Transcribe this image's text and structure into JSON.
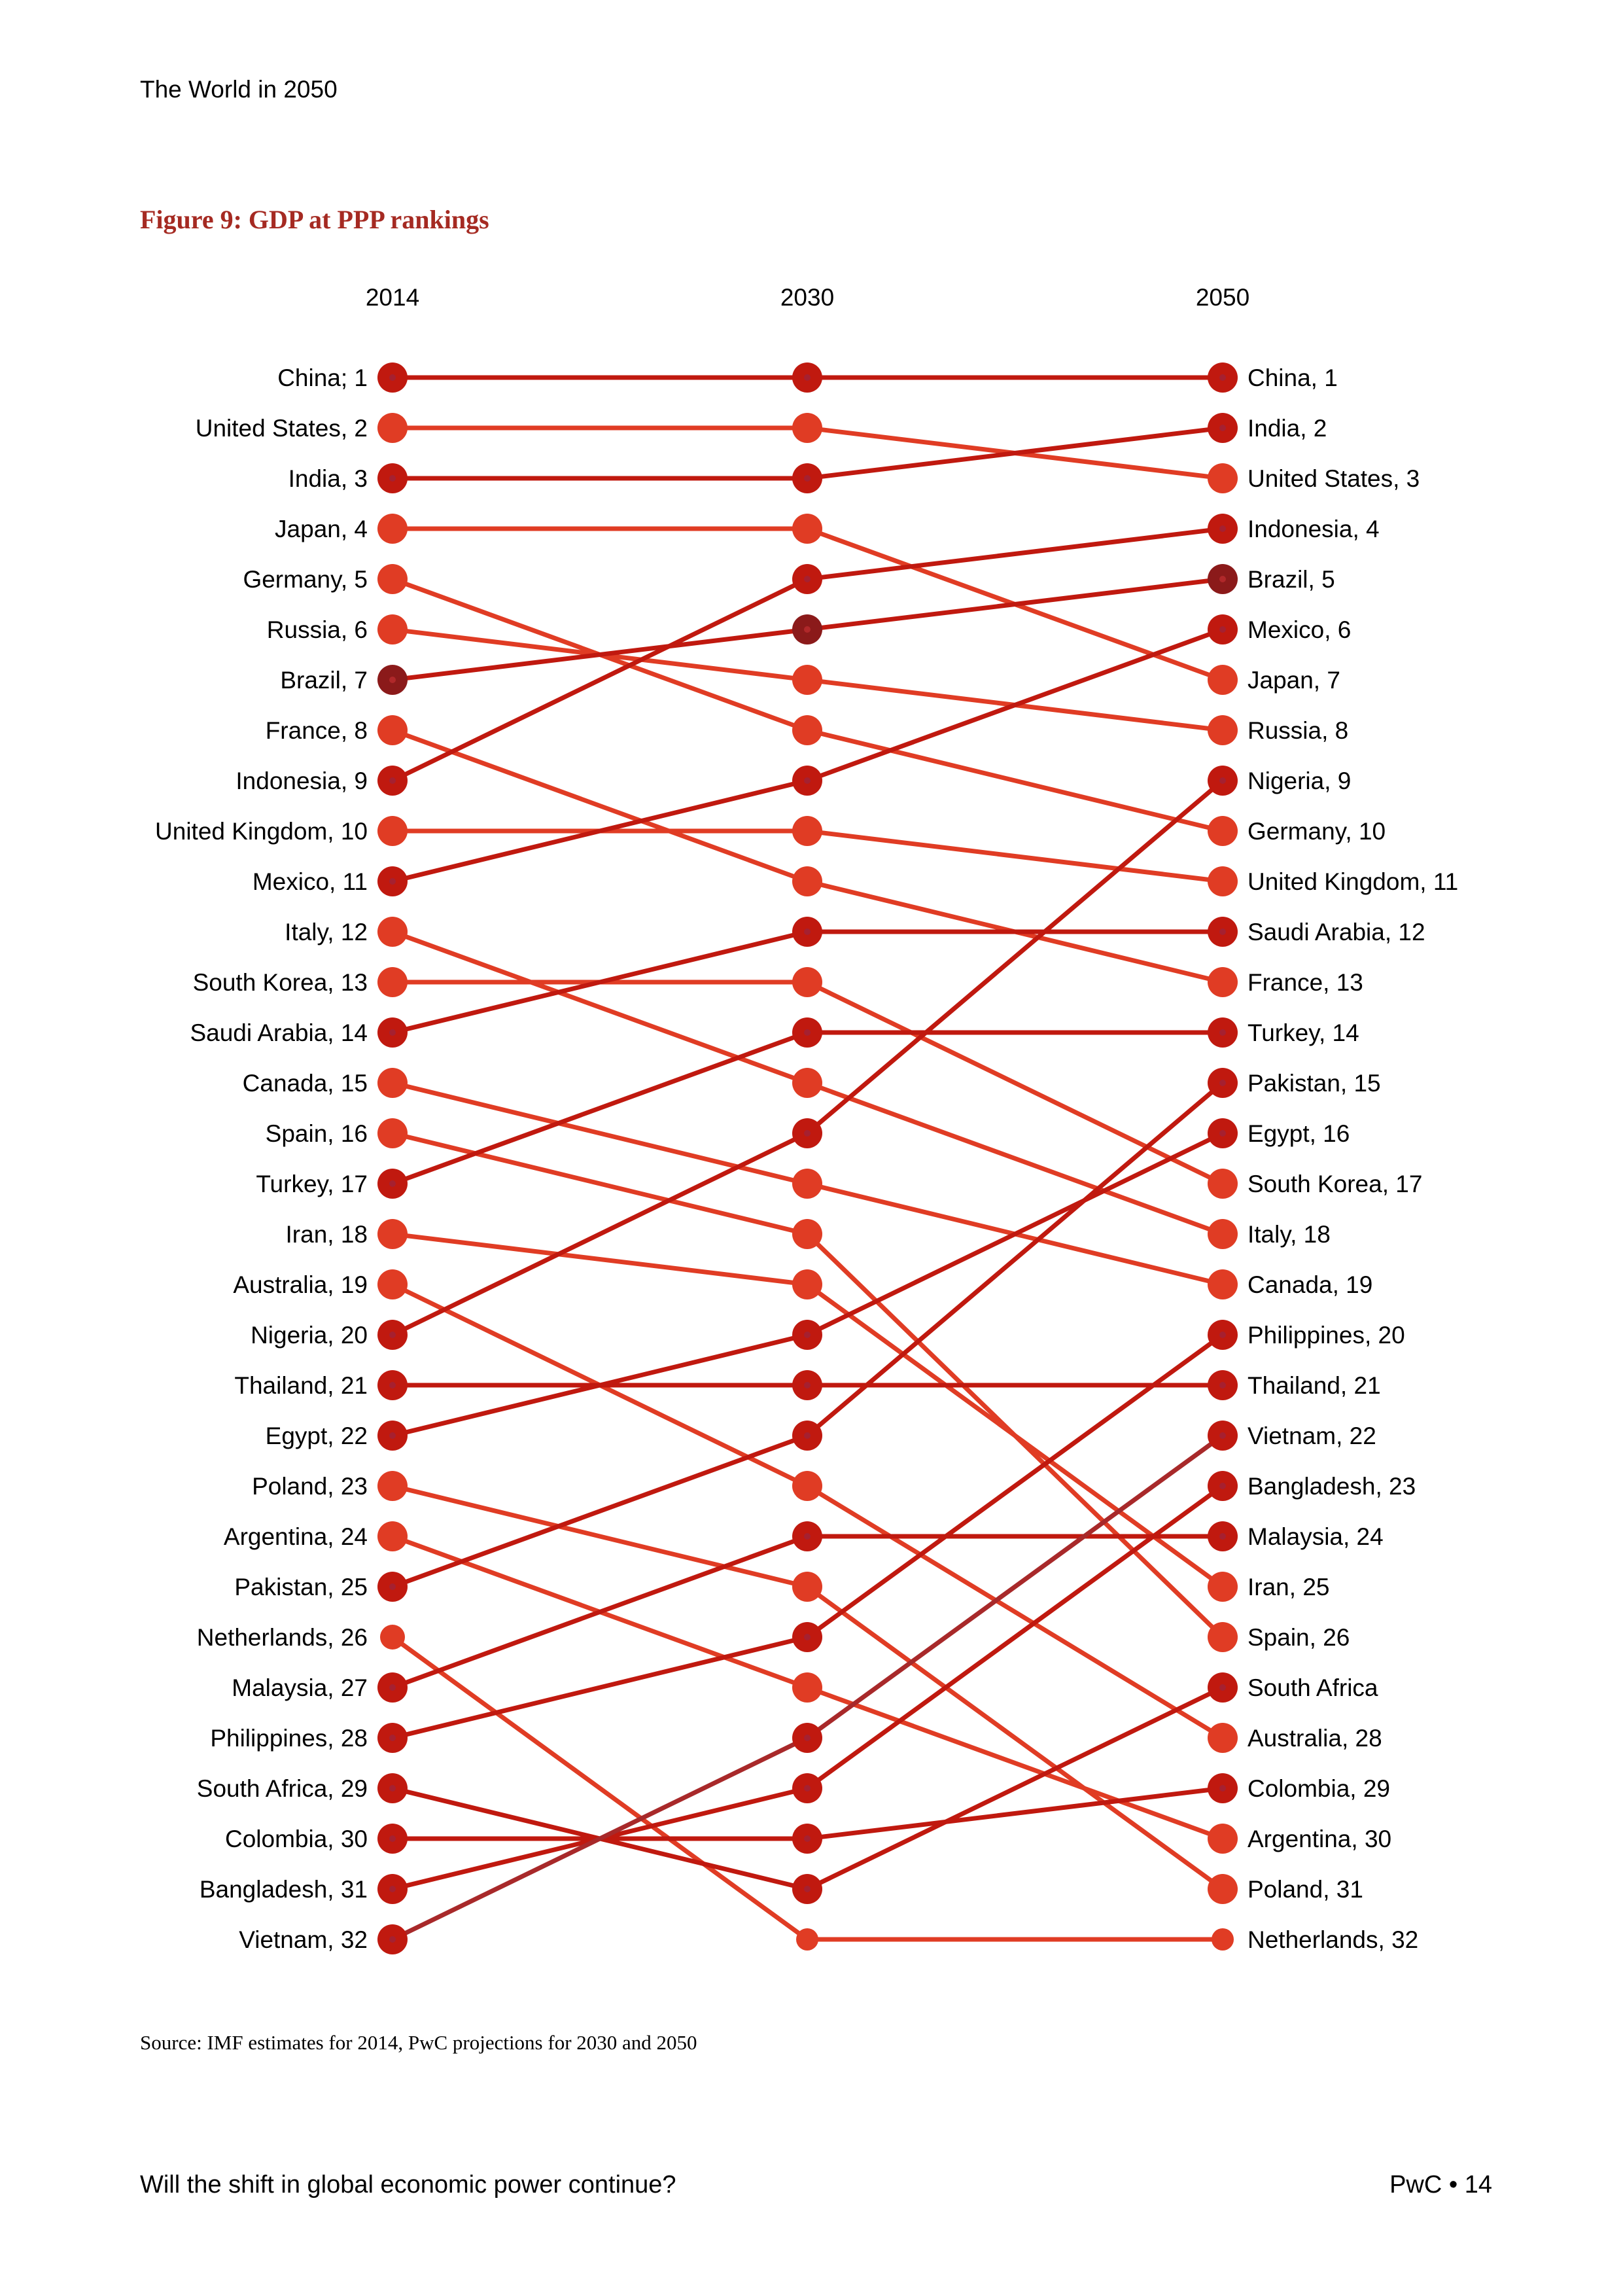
{
  "header": {
    "title": "The World in 2050"
  },
  "figure": {
    "title": "Figure 9: GDP at PPP rankings"
  },
  "source": "Source: IMF estimates for 2014, PwC projections for 2030 and 2050",
  "footer": {
    "left": "Will the shift in global economic power continue?",
    "right": "PwC • 14"
  },
  "colors": {
    "emerging": "#C0190F",
    "advanced": "#E03C24",
    "brazil": "#8B1A1A",
    "vietnam_line": "#A8292A"
  },
  "chart_data": {
    "type": "slope",
    "title": "Figure 9: GDP at PPP rankings",
    "years": [
      "2014",
      "2030",
      "2050"
    ],
    "series": [
      {
        "name": "China",
        "group": "emerging",
        "ranks": [
          1,
          1,
          1
        ],
        "label_2014": "China;  1",
        "label_2050": "China,  1"
      },
      {
        "name": "United States",
        "group": "advanced",
        "ranks": [
          2,
          2,
          3
        ],
        "label_2014": "United States,  2",
        "label_2050": "United States,  3"
      },
      {
        "name": "India",
        "group": "emerging",
        "ranks": [
          3,
          3,
          2
        ],
        "label_2014": "India,  3",
        "label_2050": "India,  2"
      },
      {
        "name": "Japan",
        "group": "advanced",
        "ranks": [
          4,
          4,
          7
        ],
        "label_2014": "Japan,  4",
        "label_2050": "Japan,  7"
      },
      {
        "name": "Germany",
        "group": "advanced",
        "ranks": [
          5,
          8,
          10
        ],
        "label_2014": "Germany,  5",
        "label_2050": "Germany,  10"
      },
      {
        "name": "Russia",
        "group": "advanced",
        "ranks": [
          6,
          7,
          8
        ],
        "label_2014": "Russia,  6",
        "label_2050": "Russia,  8"
      },
      {
        "name": "Brazil",
        "group": "brazil",
        "ranks": [
          7,
          6,
          5
        ],
        "label_2014": "Brazil,  7",
        "label_2050": "Brazil,  5"
      },
      {
        "name": "France",
        "group": "advanced",
        "ranks": [
          8,
          11,
          13
        ],
        "label_2014": "France,  8",
        "label_2050": "France,  13"
      },
      {
        "name": "Indonesia",
        "group": "emerging",
        "ranks": [
          9,
          5,
          4
        ],
        "label_2014": "Indonesia,  9",
        "label_2050": "Indonesia,  4"
      },
      {
        "name": "United Kingdom",
        "group": "advanced",
        "ranks": [
          10,
          10,
          11
        ],
        "label_2014": "United Kingdom,  10",
        "label_2050": "United Kingdom,  11"
      },
      {
        "name": "Mexico",
        "group": "emerging",
        "ranks": [
          11,
          9,
          6
        ],
        "label_2014": "Mexico,  11",
        "label_2050": "Mexico,  6"
      },
      {
        "name": "Italy",
        "group": "advanced",
        "ranks": [
          12,
          15,
          18
        ],
        "label_2014": "Italy,  12",
        "label_2050": "Italy,  18"
      },
      {
        "name": "South Korea",
        "group": "advanced",
        "ranks": [
          13,
          13,
          17
        ],
        "label_2014": "South Korea,  13",
        "label_2050": "South Korea,  17"
      },
      {
        "name": "Saudi Arabia",
        "group": "emerging",
        "ranks": [
          14,
          12,
          12
        ],
        "label_2014": "Saudi Arabia,  14",
        "label_2050": "Saudi Arabia,  12"
      },
      {
        "name": "Canada",
        "group": "advanced",
        "ranks": [
          15,
          17,
          19
        ],
        "label_2014": "Canada,  15",
        "label_2050": "Canada,  19"
      },
      {
        "name": "Spain",
        "group": "advanced",
        "ranks": [
          16,
          18,
          26
        ],
        "label_2014": "Spain,  16",
        "label_2050": "Spain,  26"
      },
      {
        "name": "Turkey",
        "group": "emerging",
        "ranks": [
          17,
          14,
          14
        ],
        "label_2014": "Turkey,  17",
        "label_2050": "Turkey,  14"
      },
      {
        "name": "Iran",
        "group": "advanced",
        "ranks": [
          18,
          19,
          25
        ],
        "label_2014": "Iran,  18",
        "label_2050": "Iran,  25"
      },
      {
        "name": "Australia",
        "group": "advanced",
        "ranks": [
          19,
          23,
          28
        ],
        "label_2014": "Australia,  19",
        "label_2050": "Australia,  28"
      },
      {
        "name": "Nigeria",
        "group": "emerging",
        "ranks": [
          20,
          16,
          9
        ],
        "label_2014": "Nigeria,  20",
        "label_2050": "Nigeria,  9"
      },
      {
        "name": "Thailand",
        "group": "emerging",
        "ranks": [
          21,
          21,
          21
        ],
        "label_2014": "Thailand,  21",
        "label_2050": "Thailand,  21"
      },
      {
        "name": "Egypt",
        "group": "emerging",
        "ranks": [
          22,
          20,
          16
        ],
        "label_2014": "Egypt,  22",
        "label_2050": "Egypt,  16"
      },
      {
        "name": "Poland",
        "group": "advanced",
        "ranks": [
          23,
          25,
          31
        ],
        "label_2014": "Poland,  23",
        "label_2050": "Poland,  31"
      },
      {
        "name": "Argentina",
        "group": "advanced",
        "ranks": [
          24,
          27,
          30
        ],
        "label_2014": "Argentina,  24",
        "label_2050": "Argentina,  30"
      },
      {
        "name": "Pakistan",
        "group": "emerging",
        "ranks": [
          25,
          22,
          15
        ],
        "label_2014": "Pakistan,  25",
        "label_2050": "Pakistan,  15"
      },
      {
        "name": "Netherlands",
        "group": "advanced",
        "ranks": [
          26,
          32,
          32
        ],
        "label_2014": "Netherlands,  26",
        "label_2050": "Netherlands,  32",
        "small": true
      },
      {
        "name": "Malaysia",
        "group": "emerging",
        "ranks": [
          27,
          24,
          24
        ],
        "label_2014": "Malaysia,  27",
        "label_2050": "Malaysia,  24"
      },
      {
        "name": "Philippines",
        "group": "emerging",
        "ranks": [
          28,
          26,
          20
        ],
        "label_2014": "Philippines,  28",
        "label_2050": "Philippines,  20"
      },
      {
        "name": "South Africa",
        "group": "emerging",
        "ranks": [
          29,
          31,
          27
        ],
        "label_2014": "South Africa,  29",
        "label_2050": "South Africa"
      },
      {
        "name": "Colombia",
        "group": "emerging",
        "ranks": [
          30,
          30,
          29
        ],
        "label_2014": "Colombia,  30",
        "label_2050": "Colombia,  29"
      },
      {
        "name": "Bangladesh",
        "group": "emerging",
        "ranks": [
          31,
          29,
          23
        ],
        "label_2014": "Bangladesh,  31",
        "label_2050": "Bangladesh,  23"
      },
      {
        "name": "Vietnam",
        "group": "emerging",
        "ranks": [
          32,
          28,
          22
        ],
        "label_2014": "Vietnam,  32",
        "label_2050": "Vietnam,  22",
        "line_color": "vietnam_line"
      }
    ],
    "ylim": [
      1,
      32
    ]
  }
}
